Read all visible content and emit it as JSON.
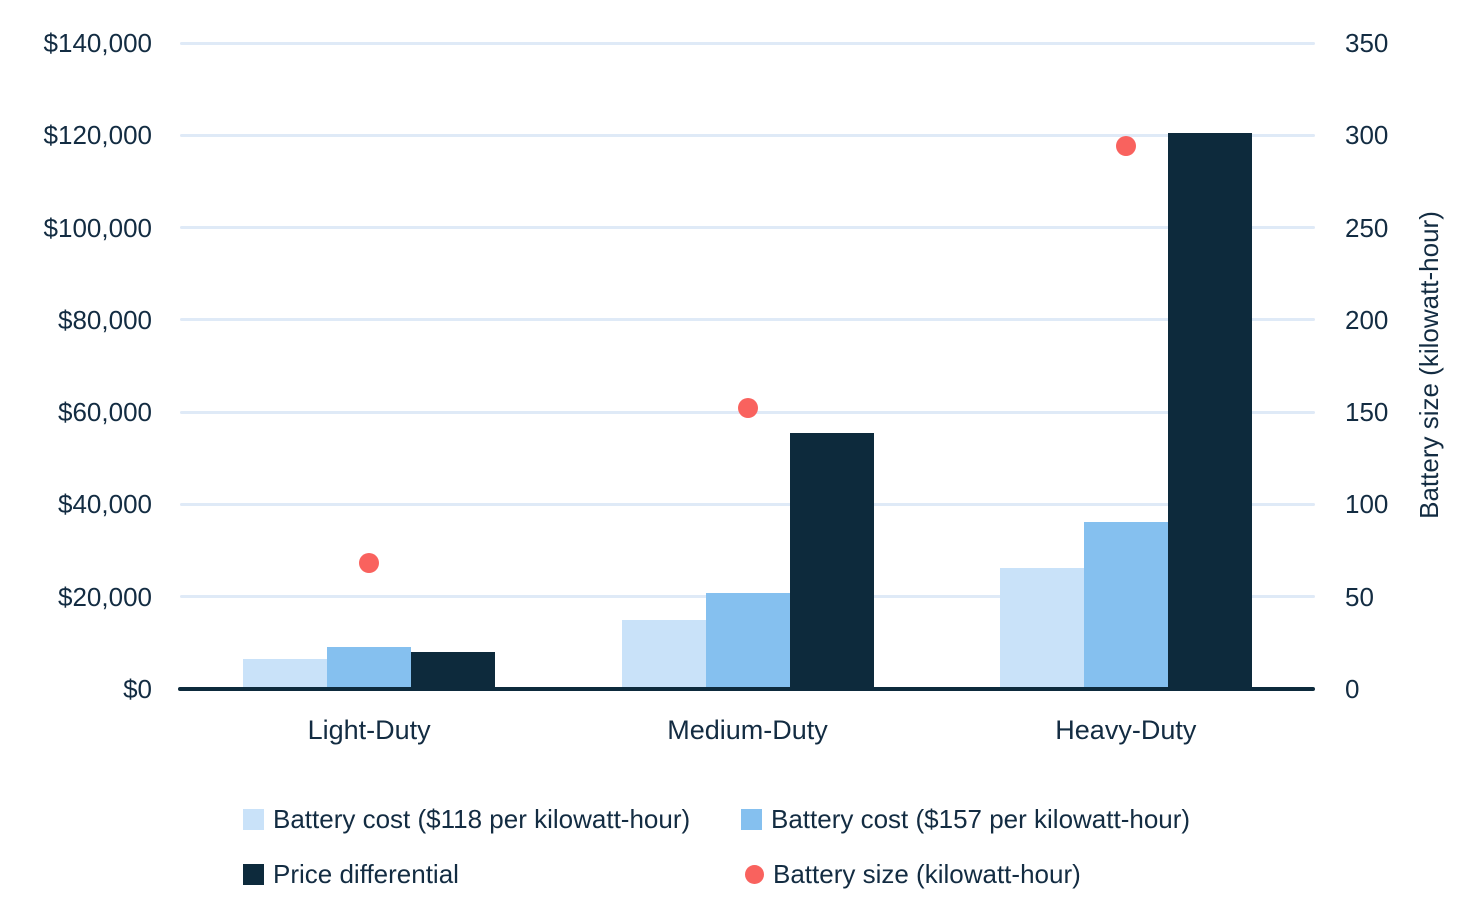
{
  "colors": {
    "light_blue": "#c9e2f9",
    "medium_blue": "#85c0ef",
    "dark_navy": "#0d2a3c",
    "red": "#f9625e",
    "gridline": "#dfeaf7",
    "text": "#132c42"
  },
  "chart_data": {
    "type": "bar",
    "subtype": "grouped bars with secondary-axis scatter",
    "categories": [
      "Light-Duty",
      "Medium-Duty",
      "Heavy-Duty"
    ],
    "series": [
      {
        "name": "Battery cost ($118 per kilowatt-hour)",
        "type": "bar",
        "axis": "left",
        "color_key": "light_blue",
        "values": [
          6500,
          15000,
          26200
        ]
      },
      {
        "name": "Battery cost ($157 per kilowatt-hour)",
        "type": "bar",
        "axis": "left",
        "color_key": "medium_blue",
        "values": [
          9100,
          20900,
          36300
        ]
      },
      {
        "name": "Price differential",
        "type": "bar",
        "axis": "left",
        "color_key": "dark_navy",
        "values": [
          8000,
          55500,
          120400
        ]
      },
      {
        "name": "Battery size (kilowatt-hour)",
        "type": "scatter",
        "axis": "right",
        "color_key": "red",
        "values": [
          68,
          152,
          294
        ]
      }
    ],
    "left_axis": {
      "ticks": [
        "$140,000",
        "$120,000",
        "$100,000",
        "$80,000",
        "$60,000",
        "$40,000",
        "$20,000",
        "$0"
      ],
      "tick_values": [
        140000,
        120000,
        100000,
        80000,
        60000,
        40000,
        20000,
        0
      ],
      "min": 0,
      "max": 140000
    },
    "right_axis": {
      "title": "Battery size (kilowatt-hour)",
      "ticks": [
        "350",
        "300",
        "250",
        "200",
        "150",
        "100",
        "50",
        "0"
      ],
      "tick_values": [
        350,
        300,
        250,
        200,
        150,
        100,
        50,
        0
      ],
      "min": 0,
      "max": 350
    },
    "grid": "horizontal",
    "legend_position": "bottom"
  }
}
